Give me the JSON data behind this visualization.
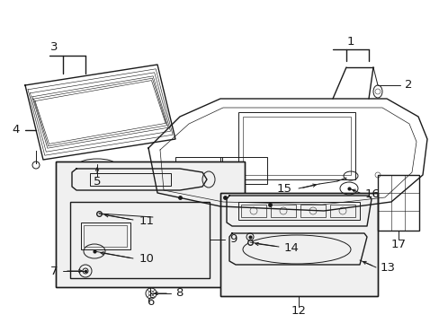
{
  "bg_color": "#ffffff",
  "line_color": "#1a1a1a",
  "fig_width": 4.89,
  "fig_height": 3.6,
  "font_size": 8.5
}
